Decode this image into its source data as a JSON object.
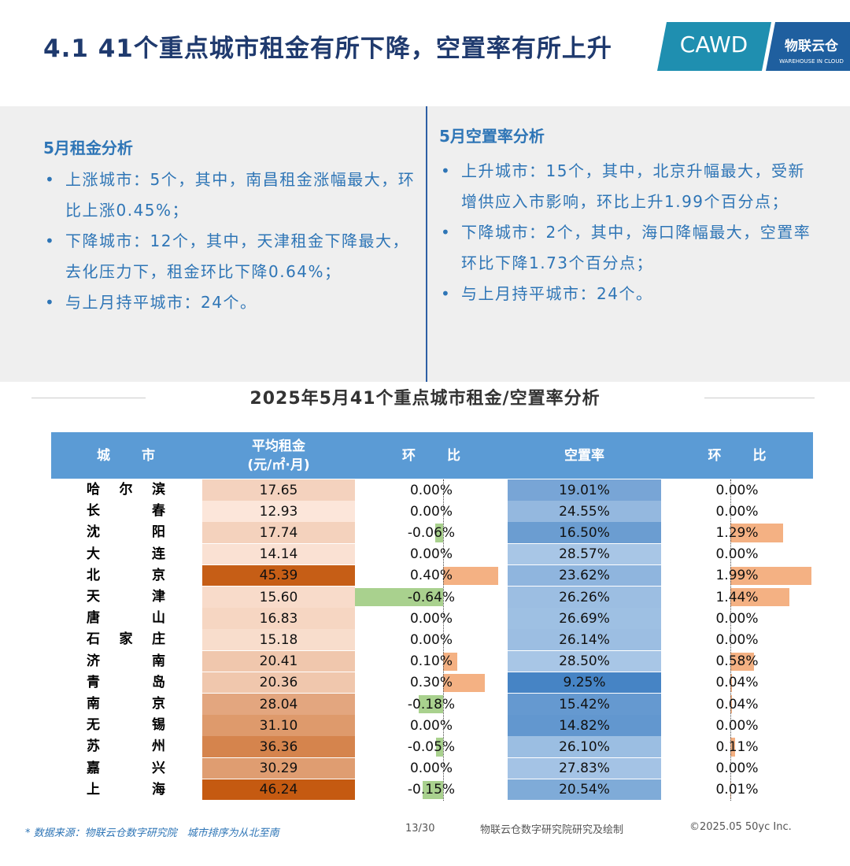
{
  "header": {
    "title": "4.1 41个重点城市租金有所下降，空置率有所上升",
    "logo": {
      "cawd": "CAWD",
      "brand": "物联云仓",
      "brand_en": "WAREHOUSE IN CLOUD"
    }
  },
  "left_panel": {
    "title": "5月租金分析",
    "bullets": [
      "上涨城市：5个，其中，南昌租金涨幅最大，环比上涨0.45%；",
      "下降城市：12个，其中，天津租金下降最大，去化压力下，租金环比下降0.64%；",
      "与上月持平城市：24个。"
    ]
  },
  "right_panel": {
    "title": "5月空置率分析",
    "bullets": [
      "上升城市：15个，其中，北京升幅最大，受新增供应入市影响，环比上升1.99个百分点；",
      "下降城市：2个，其中，海口降幅最大，空置率环比下降1.73个百分点；",
      "与上月持平城市：24个。"
    ]
  },
  "table": {
    "title": "2025年5月41个重点城市租金/空置率分析",
    "headers": [
      "城市",
      "平均租金\n(元/㎡·月)",
      "环比",
      "空置率",
      "环比"
    ],
    "rows": [
      [
        "哈尔滨",
        "17.65",
        "0.00%",
        "19.01%",
        "0.00%"
      ],
      [
        "长春",
        "12.93",
        "0.00%",
        "24.55%",
        "0.00%"
      ],
      [
        "沈阳",
        "17.74",
        "-0.06%",
        "16.50%",
        "1.29%"
      ],
      [
        "大连",
        "14.14",
        "0.00%",
        "28.57%",
        "0.00%"
      ],
      [
        "北京",
        "45.39",
        "0.40%",
        "23.62%",
        "1.99%"
      ],
      [
        "天津",
        "15.60",
        "-0.64%",
        "26.26%",
        "1.44%"
      ],
      [
        "唐山",
        "16.83",
        "0.00%",
        "26.69%",
        "0.00%"
      ],
      [
        "石家庄",
        "15.18",
        "0.00%",
        "26.14%",
        "0.00%"
      ],
      [
        "济南",
        "20.41",
        "0.10%",
        "28.50%",
        "0.58%"
      ],
      [
        "青岛",
        "20.36",
        "0.30%",
        "9.25%",
        "0.04%"
      ],
      [
        "南京",
        "28.04",
        "-0.18%",
        "15.42%",
        "0.04%"
      ],
      [
        "无锡",
        "31.10",
        "0.00%",
        "14.82%",
        "0.00%"
      ],
      [
        "苏州",
        "36.36",
        "-0.05%",
        "26.10%",
        "0.11%"
      ],
      [
        "嘉兴",
        "30.29",
        "0.00%",
        "27.83%",
        "0.00%"
      ],
      [
        "上海",
        "46.24",
        "-0.15%",
        "20.54%",
        "0.01%"
      ]
    ]
  },
  "footer": {
    "source": "* 数据来源：物联云仓数字研究院　城市排序为从北至南",
    "page": "13/30",
    "credit": "物联云仓数字研究院研究及绘制",
    "copyright": "©2025.05 50yc Inc."
  }
}
